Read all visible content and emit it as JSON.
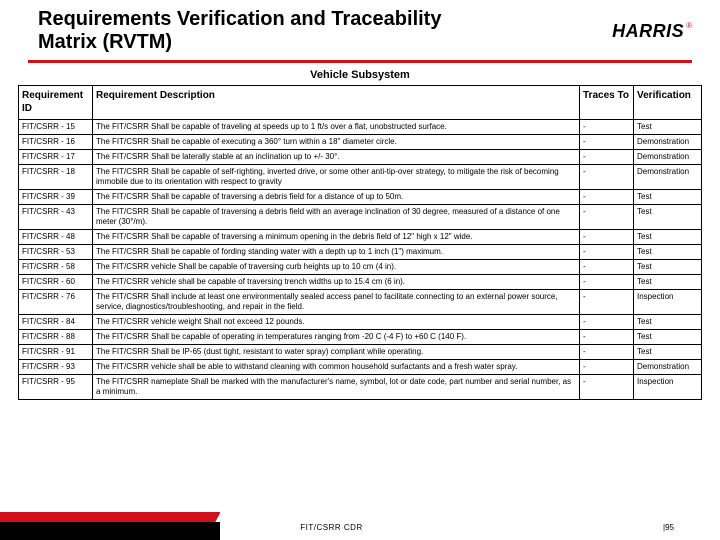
{
  "page": {
    "title": "Requirements Verification and Traceability Matrix (RVTM)",
    "subsystem": "Vehicle Subsystem",
    "footer_center": "FIT/CSRR CDR",
    "footer_right": "|95"
  },
  "logo": {
    "text": "HARRIS",
    "reg": "®"
  },
  "colors": {
    "accent": "#d0101a",
    "text": "#000000",
    "border": "#000000",
    "background": "#ffffff"
  },
  "table": {
    "headers": {
      "id": "Requirement ID",
      "desc": "Requirement Description",
      "traces": "Traces To",
      "verif": "Verification"
    },
    "rows": [
      {
        "id": "FIT/CSRR - 15",
        "desc": "The FIT/CSRR Shall be capable of traveling at speeds up to 1 ft/s over a flat, unobstructed surface.",
        "traces": "-",
        "verif": "Test"
      },
      {
        "id": "FIT/CSRR - 16",
        "desc": "The FIT/CSRR Shall be capable of executing a 360° turn within a 18\" diameter circle.",
        "traces": "-",
        "verif": "Demonstration"
      },
      {
        "id": "FIT/CSRR - 17",
        "desc": "The FIT/CSRR Shall be laterally stable at an inclination up to +/- 30°.",
        "traces": "-",
        "verif": "Demonstration"
      },
      {
        "id": "FIT/CSRR - 18",
        "desc": "The FIT/CSRR Shall be capable of self-righting, inverted drive, or some other anti-tip-over strategy, to mitigate the risk of becoming immobile due to its orientation with respect to gravity",
        "traces": "-",
        "verif": "Demonstration"
      },
      {
        "id": "FIT/CSRR - 39",
        "desc": "The FIT/CSRR Shall be capable of traversing a debris field for a distance of up to 50m.",
        "traces": "-",
        "verif": "Test"
      },
      {
        "id": "FIT/CSRR - 43",
        "desc": "The FIT/CSRR Shall be capable of traversing a debris field with an average inclination of 30 degree, measured of a distance of one meter (30°/m).",
        "traces": "-",
        "verif": "Test"
      },
      {
        "id": "FIT/CSRR - 48",
        "desc": "The FIT/CSRR Shall be capable of traversing a minimum opening in the debris field of 12\" high x 12\" wide.",
        "traces": "-",
        "verif": "Test"
      },
      {
        "id": "FIT/CSRR - 53",
        "desc": "The FIT/CSRR Shall be capable of fording standing water with a depth up to 1 inch (1\") maximum.",
        "traces": "-",
        "verif": "Test"
      },
      {
        "id": "FIT/CSRR - 58",
        "desc": "The FIT/CSRR vehicle Shall be capable of traversing curb heights up to 10 cm (4 in).",
        "traces": "-",
        "verif": "Test"
      },
      {
        "id": "FIT/CSRR - 60",
        "desc": "The FIT/CSRR vehicle shall be capable of traversing trench widths up to 15.4 cm (6 in).",
        "traces": "-",
        "verif": "Test"
      },
      {
        "id": "FIT/CSRR - 76",
        "desc": "The FIT/CSRR Shall include at least one environmentally sealed access panel to facilitate connecting to an external power source, service, diagnostics/troubleshooting, and repair in the field.",
        "traces": "-",
        "verif": "Inspection"
      },
      {
        "id": "FIT/CSRR - 84",
        "desc": "The FIT/CSRR vehicle weight Shall not exceed 12 pounds.",
        "traces": "-",
        "verif": "Test"
      },
      {
        "id": "FIT/CSRR - 88",
        "desc": "The FIT/CSRR Shall be capable of operating in temperatures ranging from -20 C (-4 F) to +60 C (140 F).",
        "traces": "-",
        "verif": "Test"
      },
      {
        "id": "FIT/CSRR - 91",
        "desc": "The FIT/CSRR Shall be IP-65 (dust tight, resistant to water spray) compliant while operating.",
        "traces": "-",
        "verif": "Test"
      },
      {
        "id": "FIT/CSRR - 93",
        "desc": "The FIT/CSRR vehicle shall be able to withstand cleaning with common household surfactants and a fresh water spray.",
        "traces": "-",
        "verif": "Demonstration"
      },
      {
        "id": "FIT/CSRR - 95",
        "desc": "The FIT/CSRR nameplate Shall be marked with the manufacturer's name, symbol, lot or date code, part number and serial number, as a minimum.",
        "traces": "-",
        "verif": "Inspection"
      }
    ]
  }
}
